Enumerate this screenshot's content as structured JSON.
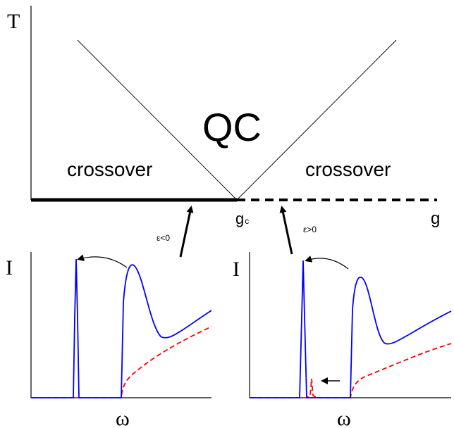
{
  "phase_diagram": {
    "y_axis_label": "T",
    "x_axis_label": "g",
    "critical_point_label": "g",
    "critical_point_subscript": "c",
    "center_region_label": "QC",
    "left_region_label": "crossover",
    "right_region_label": "crossover"
  },
  "left_panel": {
    "y_axis_label": "I",
    "x_axis_label": "ω",
    "epsilon_label": "ε<0"
  },
  "right_panel": {
    "y_axis_label": "I",
    "x_axis_label": "ω",
    "epsilon_label": "ε>0"
  },
  "colors": {
    "axis": "#000000",
    "solid_curve": "#0000ff",
    "dashed_curve": "#ff0000"
  }
}
